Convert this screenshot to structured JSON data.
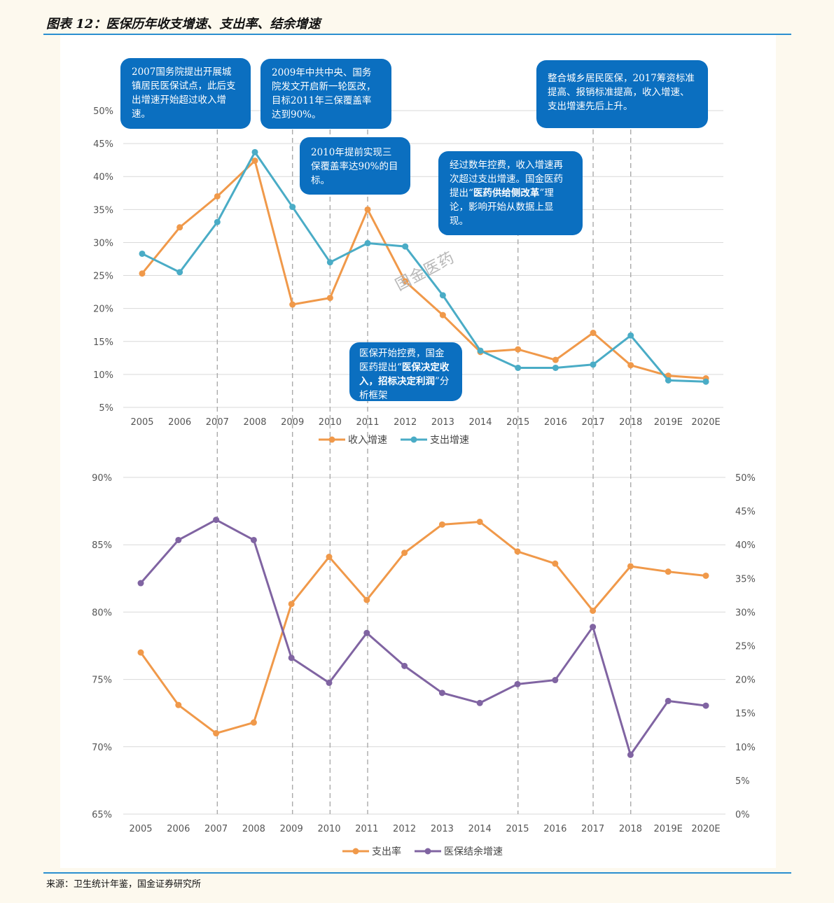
{
  "figure_title": "图表 12：医保历年收支增速、支出率、结余增速",
  "source": "来源：卫生统计年鉴，国金证券研究所",
  "watermark": "国金医药",
  "colors": {
    "orange": "#f0994a",
    "teal": "#4aacc6",
    "purple": "#8064a2",
    "callout_bg": "#0b6fc0",
    "rule": "#2a8fd0",
    "grid": "#d9d9d9",
    "dashed": "#aaaaaa"
  },
  "callouts": [
    {
      "text": "2007国务院提出开展城镇居民医保试点，此后支出增速开始超过收入增速。"
    },
    {
      "text": "2009年中共中央、国务院发文开启新一轮医改，目标2011年三保覆盖率达到90%。"
    },
    {
      "text": "2010年提前实现三保覆盖率达90%的目标。"
    },
    {
      "text_1": "经过数年控费，收入增速再次超过支出增速。",
      "text_2": "国金医药提出“",
      "bold_1": "医药供给侧改革",
      "text_3": "”理论，影响开始从数据上显现。"
    },
    {
      "text": "整合城乡居民医保，2017筹资标准提高、报销标准提高，收入增速、支出增速先后上升。"
    },
    {
      "text_1": "医保开始控费，国金医药提出“",
      "bold_1": "医保决定收入，招标决定利润",
      "text_2": "”分析框架"
    }
  ],
  "chart_data": [
    {
      "type": "line",
      "x": [
        "2005",
        "2006",
        "2007",
        "2008",
        "2009",
        "2010",
        "2011",
        "2012",
        "2013",
        "2014",
        "2015",
        "2016",
        "2017",
        "2018",
        "2019E",
        "2020E"
      ],
      "y_ticks": [
        "5%",
        "10%",
        "15%",
        "20%",
        "25%",
        "30%",
        "35%",
        "40%",
        "45%",
        "50%"
      ],
      "ylim": [
        5,
        50
      ],
      "series": [
        {
          "name": "收入增速",
          "color": "#f0994a",
          "values": [
            25.3,
            32.3,
            37.0,
            42.4,
            20.6,
            21.6,
            35.0,
            24.1,
            19.0,
            13.4,
            13.8,
            12.2,
            16.3,
            11.4,
            9.8,
            9.4
          ]
        },
        {
          "name": "支出增速",
          "color": "#4aacc6",
          "values": [
            28.3,
            25.5,
            33.1,
            43.7,
            35.4,
            27.0,
            29.9,
            29.4,
            22.0,
            13.6,
            11.0,
            11.0,
            11.5,
            15.9,
            9.1,
            8.9
          ]
        }
      ],
      "dashed_years": [
        "2007",
        "2009",
        "2010",
        "2011",
        "2015",
        "2017",
        "2018"
      ]
    },
    {
      "type": "line",
      "x": [
        "2005",
        "2006",
        "2007",
        "2008",
        "2009",
        "2010",
        "2011",
        "2012",
        "2013",
        "2014",
        "2015",
        "2016",
        "2017",
        "2018",
        "2019E",
        "2020E"
      ],
      "y_left_ticks": [
        "65%",
        "70%",
        "75%",
        "80%",
        "85%",
        "90%"
      ],
      "y_right_ticks": [
        "0%",
        "5%",
        "10%",
        "15%",
        "20%",
        "25%",
        "30%",
        "35%",
        "40%",
        "45%",
        "50%"
      ],
      "ylim_left": [
        65,
        90
      ],
      "ylim_right": [
        0,
        50
      ],
      "series": [
        {
          "name": "支出率",
          "axis": "left",
          "color": "#f0994a",
          "values": [
            77.0,
            73.1,
            71.0,
            71.8,
            80.6,
            84.1,
            80.9,
            84.4,
            86.5,
            86.7,
            84.5,
            83.6,
            80.1,
            83.4,
            83.0,
            82.7
          ]
        },
        {
          "name": "医保结余增速",
          "axis": "right",
          "color": "#8064a2",
          "values": [
            34.3,
            40.7,
            43.7,
            40.7,
            23.2,
            19.5,
            26.9,
            22.0,
            18.0,
            16.5,
            19.3,
            19.9,
            27.8,
            8.8,
            16.8,
            16.1
          ]
        }
      ],
      "dashed_years": [
        "2007",
        "2009",
        "2010",
        "2011",
        "2015",
        "2017",
        "2018"
      ]
    }
  ]
}
